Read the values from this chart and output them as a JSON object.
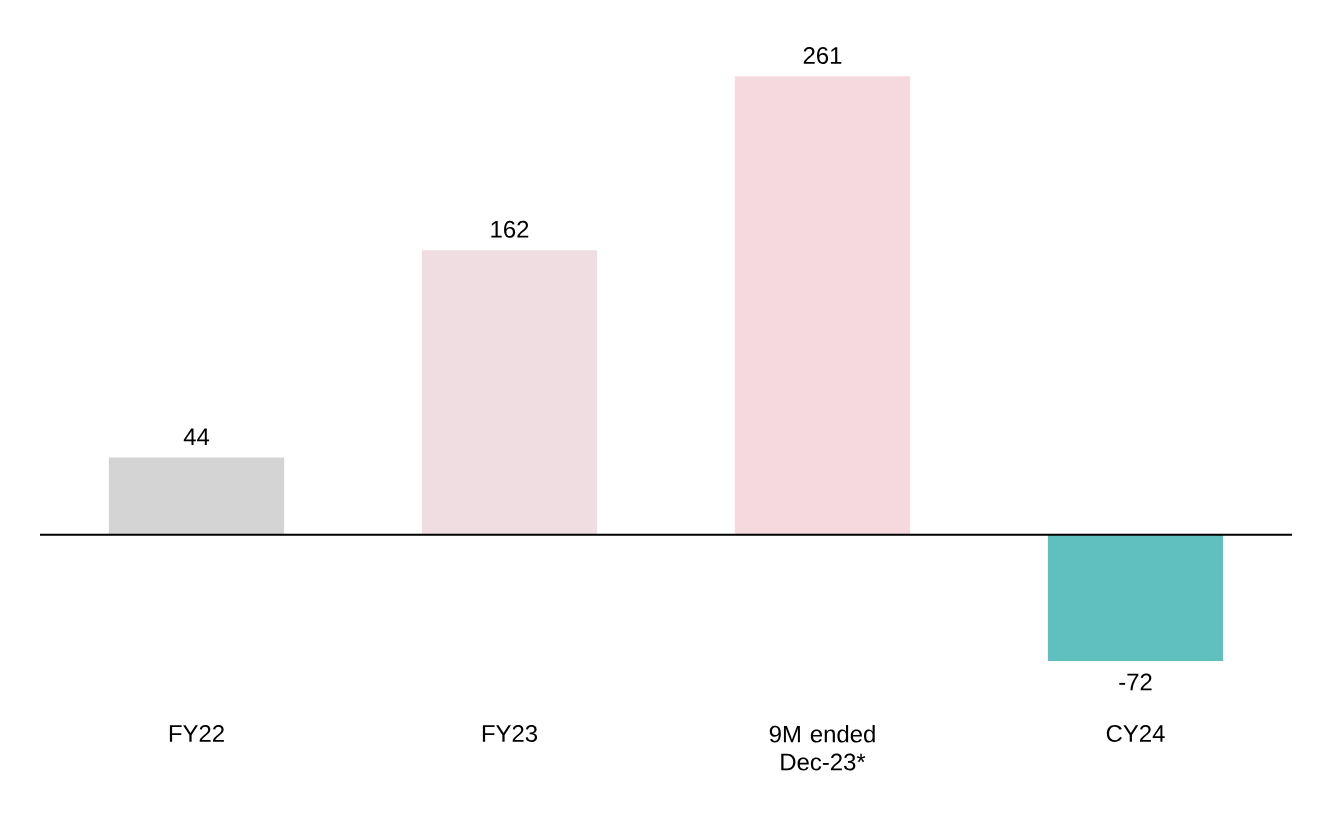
{
  "chart_data": {
    "type": "bar",
    "categories": [
      "FY22",
      "FY23",
      "9M ended Dec-23*",
      "CY24"
    ],
    "values": [
      44,
      162,
      261,
      -72
    ],
    "colors": [
      "#d4d4d4",
      "#f0dde2",
      "#f5d9df",
      "#5fc0bf"
    ],
    "data_labels": true
  }
}
